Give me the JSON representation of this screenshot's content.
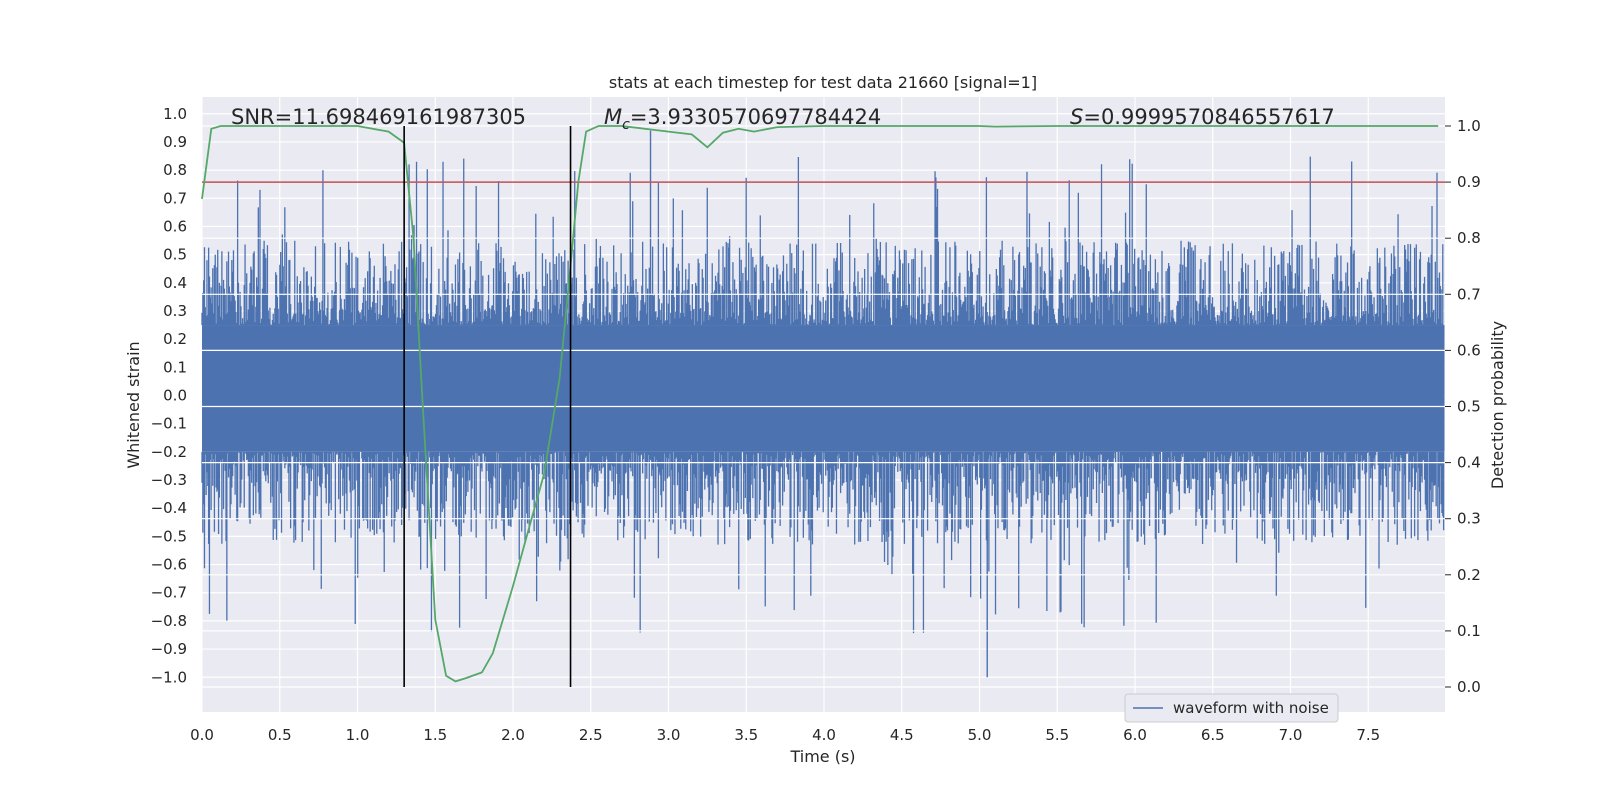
{
  "chart_data": {
    "type": "line",
    "title": "stats at each timestep for test data 21660 [signal=1]",
    "xlabel": "Time (s)",
    "ylabel": "Whitened strain",
    "y2label": "Detection probability",
    "xlim": [
      0.0,
      8.0
    ],
    "ylim": [
      -1.1,
      1.05
    ],
    "y2lim": [
      -0.05,
      1.045
    ],
    "x_ticks": [
      "0.0",
      "0.5",
      "1.0",
      "1.5",
      "2.0",
      "2.5",
      "3.0",
      "3.5",
      "4.0",
      "4.5",
      "5.0",
      "5.5",
      "6.0",
      "6.5",
      "7.0",
      "7.5"
    ],
    "y_ticks": [
      "1.0",
      "0.9",
      "0.8",
      "0.7",
      "0.6",
      "0.5",
      "0.4",
      "0.3",
      "0.2",
      "0.1",
      "0.0",
      "−0.1",
      "−0.2",
      "−0.3",
      "−0.4",
      "−0.5",
      "−0.6",
      "−0.7",
      "−0.8",
      "−0.9",
      "−1.0"
    ],
    "y2_ticks": [
      "1.0",
      "0.9",
      "0.8",
      "0.7",
      "0.6",
      "0.5",
      "0.4",
      "0.3",
      "0.2",
      "0.1",
      "0.0"
    ],
    "annotations": {
      "snr": "SNR=11.698469161987305",
      "mc_symbol": "M",
      "mc_sub": "c",
      "mc_value": "=3.9330570697784424",
      "s_symbol": "S",
      "s_value": "=0.9999570846557617"
    },
    "vlines_x": [
      1.3,
      2.37
    ],
    "hline_prob": 0.9,
    "legend": [
      {
        "label": "waveform with noise",
        "color": "#4c72b0"
      }
    ],
    "series": [
      {
        "name": "detection probability",
        "axis": "right",
        "color": "#55a868",
        "x": [
          0.0,
          0.06,
          0.12,
          0.5,
          1.0,
          1.2,
          1.3,
          1.36,
          1.42,
          1.5,
          1.57,
          1.63,
          1.7,
          1.8,
          1.87,
          2.0,
          2.1,
          2.2,
          2.3,
          2.37,
          2.42,
          2.47,
          2.55,
          2.7,
          3.0,
          3.15,
          3.25,
          3.35,
          3.45,
          3.55,
          3.7,
          4.0,
          4.5,
          5.0,
          5.1,
          5.5,
          6.0,
          7.0,
          7.95
        ],
        "y": [
          0.87,
          0.995,
          1.0,
          1.0,
          1.0,
          0.99,
          0.97,
          0.8,
          0.5,
          0.12,
          0.02,
          0.01,
          0.016,
          0.026,
          0.06,
          0.18,
          0.28,
          0.38,
          0.55,
          0.75,
          0.9,
          0.99,
          1.0,
          1.0,
          0.99,
          0.985,
          0.962,
          0.988,
          0.995,
          0.99,
          0.998,
          1.0,
          1.0,
          1.0,
          0.999,
          1.0,
          1.0,
          1.0,
          1.0
        ]
      },
      {
        "name": "waveform with noise",
        "axis": "left",
        "color": "#4c72b0",
        "x_range": [
          0.0,
          7.99
        ],
        "band_high": 0.25,
        "band_low": -0.2,
        "peak_up_typical": 0.5,
        "peak_down_typical": -0.48,
        "max": 0.94,
        "min": -1.0
      }
    ]
  }
}
